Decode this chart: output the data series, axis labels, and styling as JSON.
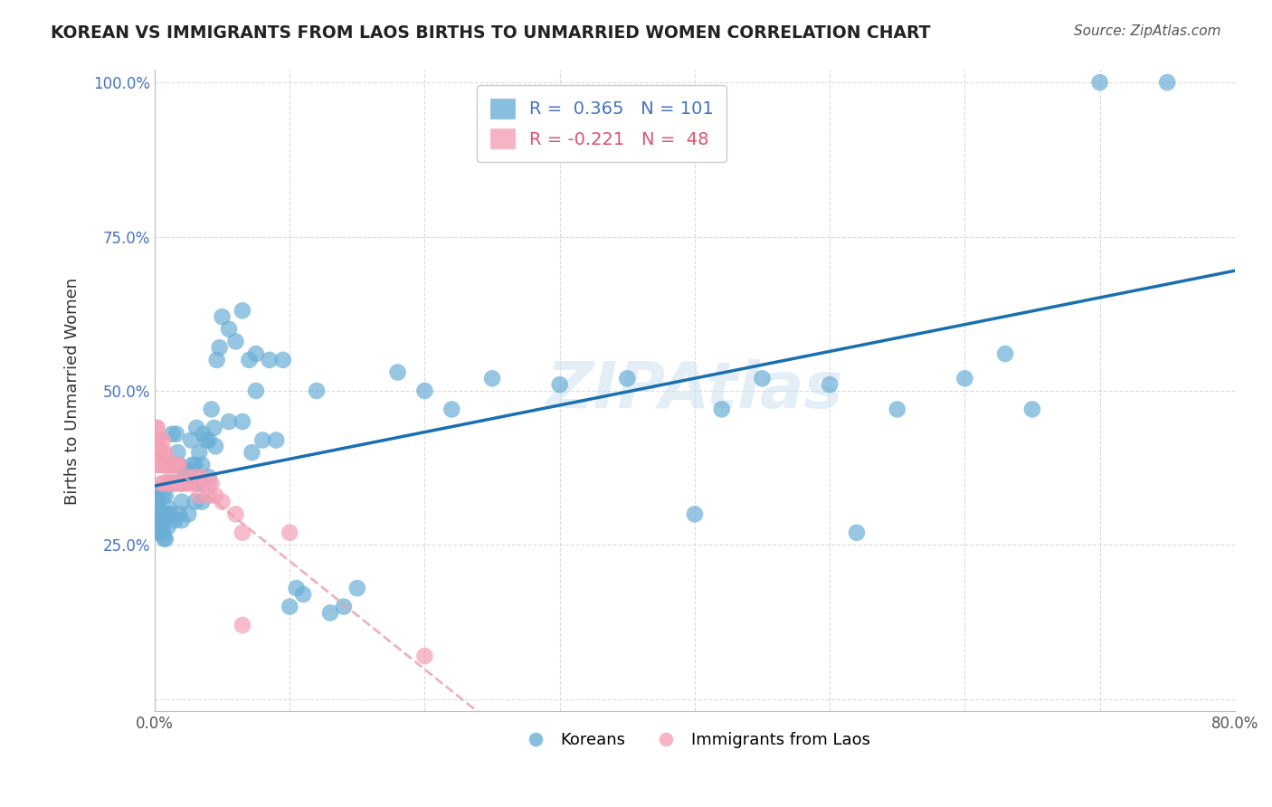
{
  "title": "KOREAN VS IMMIGRANTS FROM LAOS BIRTHS TO UNMARRIED WOMEN CORRELATION CHART",
  "source": "Source: ZipAtlas.com",
  "xlabel_bottom": "",
  "ylabel": "Births to Unmarried Women",
  "x_min": 0.0,
  "x_max": 0.8,
  "y_min": 0.0,
  "y_max": 1.0,
  "x_ticks": [
    0.0,
    0.1,
    0.2,
    0.3,
    0.4,
    0.5,
    0.6,
    0.7,
    0.8
  ],
  "x_tick_labels": [
    "0.0%",
    "",
    "",
    "",
    "",
    "",
    "",
    "",
    "80.0%"
  ],
  "y_ticks": [
    0.0,
    0.25,
    0.5,
    0.75,
    1.0
  ],
  "y_tick_labels": [
    "",
    "25.0%",
    "50.0%",
    "75.0%",
    "100.0%"
  ],
  "korean_R": 0.365,
  "korean_N": 101,
  "laos_R": -0.221,
  "laos_N": 48,
  "korean_color": "#6aaed6",
  "laos_color": "#f4a0b5",
  "korean_line_color": "#1a6faf",
  "laos_line_color": "#e8a0b0",
  "background_color": "#ffffff",
  "watermark": "ZIPAtlas",
  "korean_x": [
    0.001,
    0.001,
    0.001,
    0.002,
    0.002,
    0.002,
    0.002,
    0.002,
    0.003,
    0.003,
    0.003,
    0.003,
    0.004,
    0.004,
    0.004,
    0.005,
    0.005,
    0.005,
    0.006,
    0.006,
    0.006,
    0.007,
    0.007,
    0.008,
    0.008,
    0.008,
    0.009,
    0.01,
    0.01,
    0.01,
    0.012,
    0.012,
    0.013,
    0.015,
    0.015,
    0.016,
    0.017,
    0.018,
    0.018,
    0.02,
    0.02,
    0.02,
    0.022,
    0.025,
    0.025,
    0.027,
    0.028,
    0.03,
    0.03,
    0.031,
    0.032,
    0.033,
    0.035,
    0.035,
    0.036,
    0.038,
    0.04,
    0.04,
    0.042,
    0.044,
    0.045,
    0.046,
    0.048,
    0.05,
    0.055,
    0.055,
    0.06,
    0.065,
    0.065,
    0.07,
    0.072,
    0.075,
    0.075,
    0.08,
    0.085,
    0.09,
    0.095,
    0.1,
    0.105,
    0.11,
    0.12,
    0.13,
    0.14,
    0.15,
    0.18,
    0.2,
    0.22,
    0.25,
    0.3,
    0.35,
    0.4,
    0.42,
    0.45,
    0.5,
    0.52,
    0.55,
    0.6,
    0.63,
    0.65,
    0.7,
    0.75
  ],
  "korean_y": [
    0.29,
    0.3,
    0.32,
    0.28,
    0.3,
    0.31,
    0.33,
    0.34,
    0.27,
    0.29,
    0.3,
    0.31,
    0.27,
    0.28,
    0.3,
    0.28,
    0.29,
    0.3,
    0.27,
    0.3,
    0.33,
    0.26,
    0.29,
    0.26,
    0.3,
    0.33,
    0.3,
    0.28,
    0.31,
    0.38,
    0.3,
    0.35,
    0.43,
    0.29,
    0.35,
    0.43,
    0.4,
    0.3,
    0.38,
    0.29,
    0.32,
    0.35,
    0.37,
    0.3,
    0.37,
    0.42,
    0.38,
    0.32,
    0.38,
    0.44,
    0.35,
    0.4,
    0.32,
    0.38,
    0.43,
    0.42,
    0.36,
    0.42,
    0.47,
    0.44,
    0.41,
    0.55,
    0.57,
    0.62,
    0.6,
    0.45,
    0.58,
    0.45,
    0.63,
    0.55,
    0.4,
    0.5,
    0.56,
    0.42,
    0.55,
    0.42,
    0.55,
    0.15,
    0.18,
    0.17,
    0.5,
    0.14,
    0.15,
    0.18,
    0.53,
    0.5,
    0.47,
    0.52,
    0.51,
    0.52,
    0.3,
    0.47,
    0.52,
    0.51,
    0.27,
    0.47,
    0.52,
    0.56,
    0.47,
    1.0,
    1.0
  ],
  "laos_x": [
    0.001,
    0.001,
    0.001,
    0.002,
    0.002,
    0.002,
    0.002,
    0.003,
    0.003,
    0.003,
    0.004,
    0.004,
    0.005,
    0.005,
    0.006,
    0.006,
    0.007,
    0.007,
    0.008,
    0.009,
    0.01,
    0.01,
    0.012,
    0.013,
    0.015,
    0.015,
    0.016,
    0.018,
    0.018,
    0.02,
    0.022,
    0.025,
    0.025,
    0.025,
    0.03,
    0.03,
    0.033,
    0.035,
    0.04,
    0.04,
    0.042,
    0.045,
    0.05,
    0.06,
    0.065,
    0.065,
    0.1,
    0.2
  ],
  "laos_y": [
    0.4,
    0.42,
    0.44,
    0.38,
    0.4,
    0.42,
    0.44,
    0.38,
    0.4,
    0.42,
    0.38,
    0.4,
    0.35,
    0.38,
    0.4,
    0.42,
    0.35,
    0.38,
    0.4,
    0.38,
    0.35,
    0.38,
    0.36,
    0.38,
    0.35,
    0.38,
    0.38,
    0.35,
    0.38,
    0.35,
    0.35,
    0.35,
    0.35,
    0.36,
    0.35,
    0.36,
    0.33,
    0.36,
    0.35,
    0.33,
    0.35,
    0.33,
    0.32,
    0.3,
    0.12,
    0.27,
    0.27,
    0.07
  ]
}
